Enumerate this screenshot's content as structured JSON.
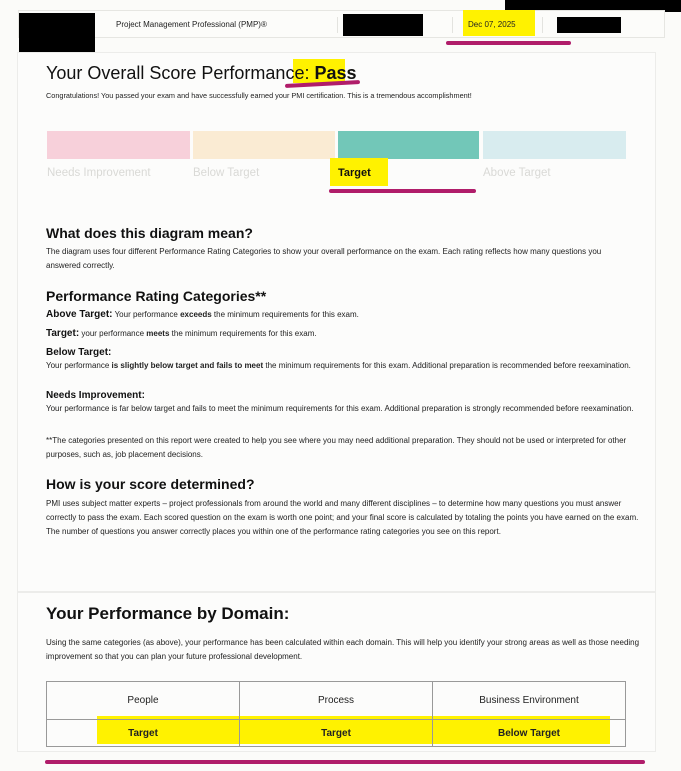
{
  "header": {
    "exam": "Project Management Professional (PMP)®",
    "date": "Dec 07, 2025"
  },
  "overall": {
    "title": "Your Overall Score Performance:",
    "result": "Pass",
    "message": "Congratulations! You passed your exam and have successfully earned your PMI certification. This is a tremendous accomplishment!",
    "scale": [
      {
        "label": "Needs Improvement",
        "color": "#f7d0da",
        "active": false
      },
      {
        "label": "Below Target",
        "color": "#faebd3",
        "active": false
      },
      {
        "label": "Target",
        "color": "#72c7b8",
        "active": true
      },
      {
        "label": "Above Target",
        "color": "#d8ecef",
        "active": false
      }
    ]
  },
  "diagram": {
    "heading": "What does this diagram mean?",
    "text": "The diagram uses four different Performance Rating Categories to show your overall performance on the exam. Each rating reflects how many questions you answered correctly."
  },
  "categories": {
    "heading": "Performance Rating Categories**",
    "above": {
      "name": "Above Target:",
      "pre": " Your performance ",
      "bold": "exceeds",
      "post": " the minimum requirements for this exam."
    },
    "target": {
      "name": "Target:",
      "pre": " your performance ",
      "bold": "meets",
      "post": " the minimum requirements for this exam."
    },
    "below": {
      "name": "Below Target:",
      "pre": "Your performance ",
      "bold": "is slightly below target and fails to meet",
      "post": " the minimum requirements for this exam. Additional preparation is recommended before reexamination."
    },
    "needs": {
      "name": "Needs Improvement:",
      "text": "Your performance is far below target and fails to meet the minimum requirements for this exam. Additional preparation is strongly recommended before reexamination."
    },
    "footnote": "**The categories presented on this report were created to help you see where you may need additional preparation. They should not be used or interpreted for other purposes, such as, job placement decisions."
  },
  "score": {
    "heading": "How is your score determined?",
    "text": "PMI uses subject matter experts – project professionals from around the world and many different disciplines – to determine how many questions you must answer correctly to pass the exam. Each scored question on the exam is worth one point; and your final score is calculated by totaling the points you have earned on the exam. The number of questions you answer correctly places you within one of the performance rating categories you see on this report."
  },
  "domain": {
    "heading": "Your Performance by Domain:",
    "text": "Using the same categories (as above), your performance has been calculated within each domain. This will help you identify your strong areas as well as those needing improvement so that you can plan your future professional development.",
    "columns": [
      "People",
      "Process",
      "Business Environment"
    ],
    "ratings": [
      "Target",
      "Target",
      "Below Target"
    ]
  }
}
